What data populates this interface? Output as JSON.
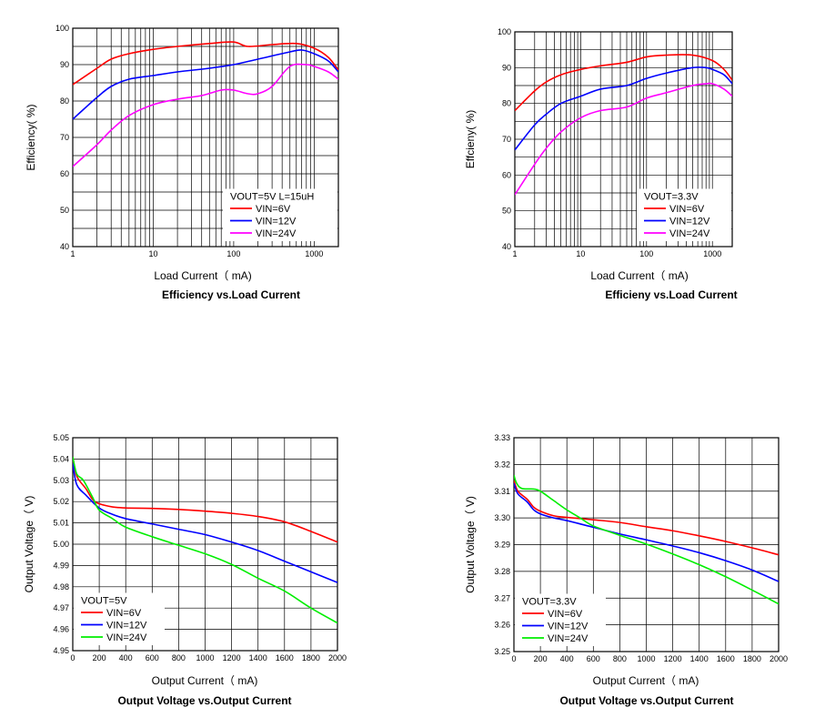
{
  "chart_data": [
    {
      "id": "p1",
      "type": "line",
      "xscale": "log",
      "title": "Efficiency vs.Load Current",
      "xlabel": "Load Current（  mA)",
      "ylabel": "Efficiency(   %)",
      "xlim": [
        1,
        2000
      ],
      "ylim": [
        40,
        100
      ],
      "xticks": [
        1,
        10,
        100,
        1000
      ],
      "xticklabels": [
        "1",
        "10",
        "100",
        "1000"
      ],
      "yticks": [
        40,
        50,
        60,
        70,
        80,
        90,
        100
      ],
      "yticklabels": [
        "40",
        "50",
        "60",
        "70",
        "80",
        "90",
        "100"
      ],
      "legend_title": "VOUT=5V L=15uH",
      "legend_pos": "bottom-right",
      "series": [
        {
          "name": "VIN=6V",
          "color": "#ff0000",
          "x": [
            1,
            2,
            3,
            5,
            10,
            20,
            50,
            100,
            150,
            300,
            600,
            1000,
            1500,
            2000
          ],
          "y": [
            84.5,
            89,
            91.5,
            93,
            94.2,
            95,
            95.8,
            96.2,
            95,
            95.5,
            95.8,
            94.5,
            92,
            88.5
          ]
        },
        {
          "name": "VIN=12V",
          "color": "#0000ff",
          "x": [
            1,
            2,
            3,
            5,
            10,
            20,
            50,
            100,
            200,
            500,
            700,
            1000,
            1500,
            2000
          ],
          "y": [
            75,
            81,
            84,
            86,
            87,
            88,
            89,
            90,
            91.5,
            93.5,
            94,
            93,
            91,
            88
          ]
        },
        {
          "name": "VIN=24V",
          "color": "#ff00ff",
          "x": [
            1,
            2,
            3,
            5,
            10,
            20,
            40,
            70,
            100,
            150,
            200,
            300,
            500,
            800,
            1000,
            1500,
            2000
          ],
          "y": [
            62,
            68,
            72,
            76,
            79,
            80.5,
            81.5,
            83,
            83,
            82,
            82,
            84,
            89.5,
            90,
            89.5,
            88,
            86
          ]
        }
      ]
    },
    {
      "id": "p2",
      "type": "line",
      "xscale": "log",
      "title": "Efficieny vs.Load Current",
      "xlabel": "Load Current（  mA)",
      "ylabel": "Effcieny(   %)",
      "xlim": [
        1,
        2000
      ],
      "ylim": [
        40,
        100
      ],
      "xticks": [
        1,
        10,
        100,
        1000
      ],
      "xticklabels": [
        "1",
        "10",
        "100",
        "1000"
      ],
      "yticks": [
        40,
        50,
        60,
        70,
        80,
        90,
        100
      ],
      "yticklabels": [
        "40",
        "50",
        "60",
        "70",
        "80",
        "90",
        "100"
      ],
      "legend_title": "VOUT=3.3V",
      "legend_pos": "bottom-right",
      "series": [
        {
          "name": "VIN=6V",
          "color": "#ff0000",
          "x": [
            1,
            2,
            3,
            5,
            10,
            20,
            50,
            100,
            200,
            500,
            1000,
            1500,
            2000
          ],
          "y": [
            78,
            83.5,
            86,
            88,
            89.5,
            90.5,
            91.5,
            93,
            93.5,
            93.5,
            92,
            89.5,
            86.5
          ]
        },
        {
          "name": "VIN=12V",
          "color": "#0000ff",
          "x": [
            1,
            2,
            3,
            5,
            10,
            20,
            50,
            100,
            200,
            500,
            800,
            1000,
            1500,
            2000
          ],
          "y": [
            67,
            74,
            77,
            80,
            82,
            84,
            85,
            87,
            88.5,
            90,
            90,
            89.5,
            88,
            85.5
          ]
        },
        {
          "name": "VIN=24V",
          "color": "#ff00ff",
          "x": [
            1,
            2,
            3,
            5,
            10,
            20,
            50,
            100,
            200,
            500,
            800,
            1000,
            1500,
            2000
          ],
          "y": [
            54.5,
            63,
            67.5,
            72,
            76,
            78,
            79,
            81.5,
            83,
            85,
            85.5,
            85.5,
            84,
            82
          ]
        }
      ]
    },
    {
      "id": "p3",
      "type": "line",
      "xscale": "linear",
      "title": "Output Voltage vs.Output Current",
      "xlabel": "Output Current（  mA)",
      "ylabel": "Output Voltage（  V)",
      "xlim": [
        0,
        2000
      ],
      "ylim": [
        4.95,
        5.05
      ],
      "xticks": [
        0,
        200,
        400,
        600,
        800,
        1000,
        1200,
        1400,
        1600,
        1800,
        2000
      ],
      "xticklabels": [
        "0",
        "200",
        "400",
        "600",
        "800",
        "1000",
        "1200",
        "1400",
        "1600",
        "1800",
        "2000"
      ],
      "yticks": [
        4.95,
        4.96,
        4.97,
        4.98,
        4.99,
        5.0,
        5.01,
        5.02,
        5.03,
        5.04,
        5.05
      ],
      "yticklabels": [
        "4.95",
        "4.96",
        "4.97",
        "4.98",
        "4.99",
        "5.00",
        "5.01",
        "5.02",
        "5.03",
        "5.04",
        "5.05"
      ],
      "legend_title": "VOUT=5V",
      "legend_pos": "bottom-left",
      "series": [
        {
          "name": "VIN=6V",
          "color": "#ff0000",
          "x": [
            0,
            30,
            100,
            150,
            200,
            300,
            400,
            600,
            800,
            1000,
            1200,
            1400,
            1600,
            1800,
            2000
          ],
          "y": [
            5.041,
            5.032,
            5.026,
            5.021,
            5.019,
            5.0175,
            5.017,
            5.0168,
            5.0163,
            5.0155,
            5.0145,
            5.013,
            5.0105,
            5.006,
            5.001
          ]
        },
        {
          "name": "VIN=12V",
          "color": "#0000ff",
          "x": [
            0,
            30,
            100,
            200,
            300,
            400,
            600,
            800,
            1000,
            1200,
            1400,
            1600,
            1800,
            2000
          ],
          "y": [
            5.038,
            5.028,
            5.023,
            5.017,
            5.014,
            5.012,
            5.0095,
            5.007,
            5.0045,
            5.001,
            4.997,
            4.992,
            4.987,
            4.982
          ]
        },
        {
          "name": "VIN=24V",
          "color": "#00ee00",
          "x": [
            0,
            30,
            80,
            150,
            200,
            300,
            400,
            600,
            800,
            1000,
            1200,
            1400,
            1600,
            1800,
            2000
          ],
          "y": [
            5.041,
            5.033,
            5.03,
            5.022,
            5.016,
            5.012,
            5.008,
            5.0035,
            4.9995,
            4.9955,
            4.9905,
            4.984,
            4.978,
            4.97,
            4.963
          ]
        }
      ]
    },
    {
      "id": "p4",
      "type": "line",
      "xscale": "linear",
      "title": "Output Voltage vs.Output Current",
      "xlabel": "Output Current（  mA)",
      "ylabel": "Output Voltage（  V)",
      "xlim": [
        0,
        2000
      ],
      "ylim": [
        3.25,
        3.33
      ],
      "xticks": [
        0,
        200,
        400,
        600,
        800,
        1000,
        1200,
        1400,
        1600,
        1800,
        2000
      ],
      "xticklabels": [
        "0",
        "200",
        "400",
        "600",
        "800",
        "1000",
        "1200",
        "1400",
        "1600",
        "1800",
        "2000"
      ],
      "yticks": [
        3.25,
        3.26,
        3.27,
        3.28,
        3.29,
        3.3,
        3.31,
        3.32,
        3.33
      ],
      "yticklabels": [
        "3.25",
        "3.26",
        "3.27",
        "3.28",
        "3.29",
        "3.30",
        "3.31",
        "3.32",
        "3.33"
      ],
      "legend_title": "VOUT=3.3V",
      "legend_pos": "bottom-left",
      "series": [
        {
          "name": "VIN=6V",
          "color": "#ff0000",
          "x": [
            0,
            30,
            100,
            150,
            200,
            300,
            400,
            600,
            800,
            1000,
            1200,
            1400,
            1600,
            1800,
            2000
          ],
          "y": [
            3.314,
            3.31,
            3.307,
            3.304,
            3.3025,
            3.3008,
            3.3002,
            3.2993,
            3.2983,
            3.2967,
            3.2952,
            3.2933,
            3.2912,
            3.2888,
            3.2862
          ]
        },
        {
          "name": "VIN=12V",
          "color": "#0000ff",
          "x": [
            0,
            30,
            100,
            150,
            200,
            300,
            400,
            600,
            800,
            1000,
            1200,
            1400,
            1600,
            1800,
            2000
          ],
          "y": [
            3.313,
            3.309,
            3.306,
            3.303,
            3.3015,
            3.3,
            3.299,
            3.2965,
            3.294,
            3.2918,
            3.2895,
            3.287,
            3.284,
            3.2805,
            3.2762
          ]
        },
        {
          "name": "VIN=24V",
          "color": "#00ee00",
          "x": [
            0,
            20,
            60,
            150,
            200,
            300,
            400,
            500,
            600,
            800,
            1000,
            1200,
            1400,
            1600,
            1800,
            2000
          ],
          "y": [
            3.316,
            3.313,
            3.311,
            3.3108,
            3.31,
            3.3065,
            3.303,
            3.3,
            3.297,
            3.2935,
            3.2902,
            3.2865,
            3.2825,
            3.278,
            3.273,
            3.2678
          ]
        }
      ]
    }
  ]
}
